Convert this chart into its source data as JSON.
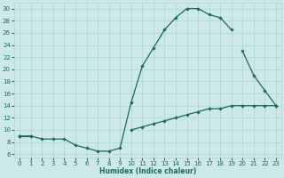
{
  "xlabel": "Humidex (Indice chaleur)",
  "xlim": [
    -0.5,
    23.5
  ],
  "ylim": [
    5.5,
    31
  ],
  "xticks": [
    0,
    1,
    2,
    3,
    4,
    5,
    6,
    7,
    8,
    9,
    10,
    11,
    12,
    13,
    14,
    15,
    16,
    17,
    18,
    19,
    20,
    21,
    22,
    23
  ],
  "yticks": [
    6,
    8,
    10,
    12,
    14,
    16,
    18,
    20,
    22,
    24,
    26,
    28,
    30
  ],
  "bg_color": "#cce8e8",
  "line_color": "#1a6b5a",
  "grid_color": "#aad4d4",
  "curve1_x": [
    0,
    1,
    2,
    3,
    4,
    5,
    6,
    7,
    8,
    9,
    10,
    11,
    12,
    13,
    14,
    15,
    16,
    17,
    18,
    19
  ],
  "curve1_y": [
    9.0,
    9.0,
    8.5,
    8.5,
    8.5,
    7.5,
    7.0,
    6.5,
    6.5,
    7.0,
    14.5,
    20.5,
    23.5,
    26.5,
    28.5,
    30.0,
    30.0,
    29.0,
    28.5,
    26.5
  ],
  "curve2_x": [
    0,
    1,
    20,
    21,
    22,
    23
  ],
  "curve2_y": [
    9.0,
    9.0,
    23.0,
    19.0,
    16.5,
    14.0
  ],
  "curve3_x": [
    0,
    10,
    11,
    12,
    13,
    14,
    15,
    16,
    17,
    18,
    19,
    20,
    21,
    22,
    23
  ],
  "curve3_y": [
    9.0,
    10.0,
    10.5,
    11.0,
    11.5,
    12.0,
    12.5,
    13.0,
    13.5,
    13.5,
    14.0,
    14.0,
    14.0,
    14.0,
    14.0
  ]
}
